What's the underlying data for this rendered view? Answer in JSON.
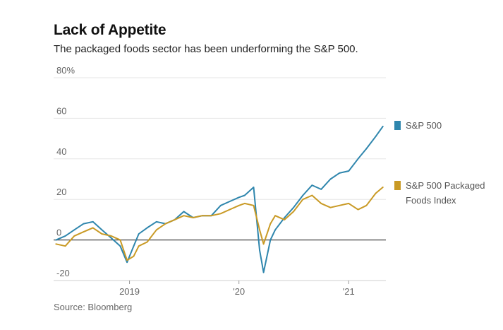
{
  "title": "Lack of Appetite",
  "subtitle": "The packaged foods sector has been underforming the S&P 500.",
  "source": "Source: Bloomberg",
  "colors": {
    "sp500": "#2f86ad",
    "packaged_foods": "#c99a25"
  },
  "chart_data": {
    "type": "line",
    "title": "Lack of Appetite",
    "subtitle": "The packaged foods sector has been underforming the S&P 500.",
    "xlabel": "",
    "ylabel": "",
    "ylim": [
      -20,
      80
    ],
    "yticks": [
      {
        "value": -20,
        "label": "-20"
      },
      {
        "value": 0,
        "label": "0"
      },
      {
        "value": 20,
        "label": "20"
      },
      {
        "value": 40,
        "label": "40"
      },
      {
        "value": 60,
        "label": "60"
      },
      {
        "value": 80,
        "label": "80%"
      }
    ],
    "xlim": [
      "2018-04-23",
      "2021-05-05"
    ],
    "xticks": [
      {
        "date": "2019-01-01",
        "label": "2019"
      },
      {
        "date": "2020-01-01",
        "label": "'20"
      },
      {
        "date": "2021-01-01",
        "label": "'21"
      }
    ],
    "grid": true,
    "legend": "right",
    "x": [
      "2018-05-01",
      "2018-06-01",
      "2018-07-01",
      "2018-08-01",
      "2018-09-01",
      "2018-10-01",
      "2018-11-01",
      "2018-12-01",
      "2018-12-24",
      "2019-01-15",
      "2019-02-01",
      "2019-03-01",
      "2019-04-01",
      "2019-05-01",
      "2019-06-01",
      "2019-07-01",
      "2019-08-01",
      "2019-09-01",
      "2019-10-01",
      "2019-11-01",
      "2019-12-01",
      "2020-01-01",
      "2020-01-20",
      "2020-02-19",
      "2020-03-10",
      "2020-03-23",
      "2020-04-15",
      "2020-05-01",
      "2020-06-01",
      "2020-07-01",
      "2020-08-01",
      "2020-09-01",
      "2020-10-01",
      "2020-11-01",
      "2020-12-01",
      "2021-01-01",
      "2021-02-01",
      "2021-03-01",
      "2021-04-01",
      "2021-04-25"
    ],
    "series": [
      {
        "name": "S&P 500",
        "values": [
          0,
          2,
          5,
          8,
          9,
          5,
          1,
          -3,
          -11,
          -3,
          3,
          6,
          9,
          8,
          10,
          14,
          11,
          12,
          12,
          17,
          19,
          21,
          22,
          26,
          -5,
          -16,
          0,
          5,
          11,
          16,
          22,
          27,
          25,
          30,
          33,
          34,
          40,
          45,
          51,
          56
        ]
      },
      {
        "name": "S&P 500 Packaged Foods Index",
        "values": [
          -2,
          -3,
          2,
          4,
          6,
          3,
          2,
          0,
          -10,
          -8,
          -3,
          -1,
          5,
          8,
          10,
          12,
          11,
          12,
          12,
          13,
          15,
          17,
          18,
          17,
          5,
          -2,
          8,
          12,
          10,
          14,
          20,
          22,
          18,
          16,
          17,
          18,
          15,
          17,
          23,
          26
        ]
      }
    ]
  }
}
